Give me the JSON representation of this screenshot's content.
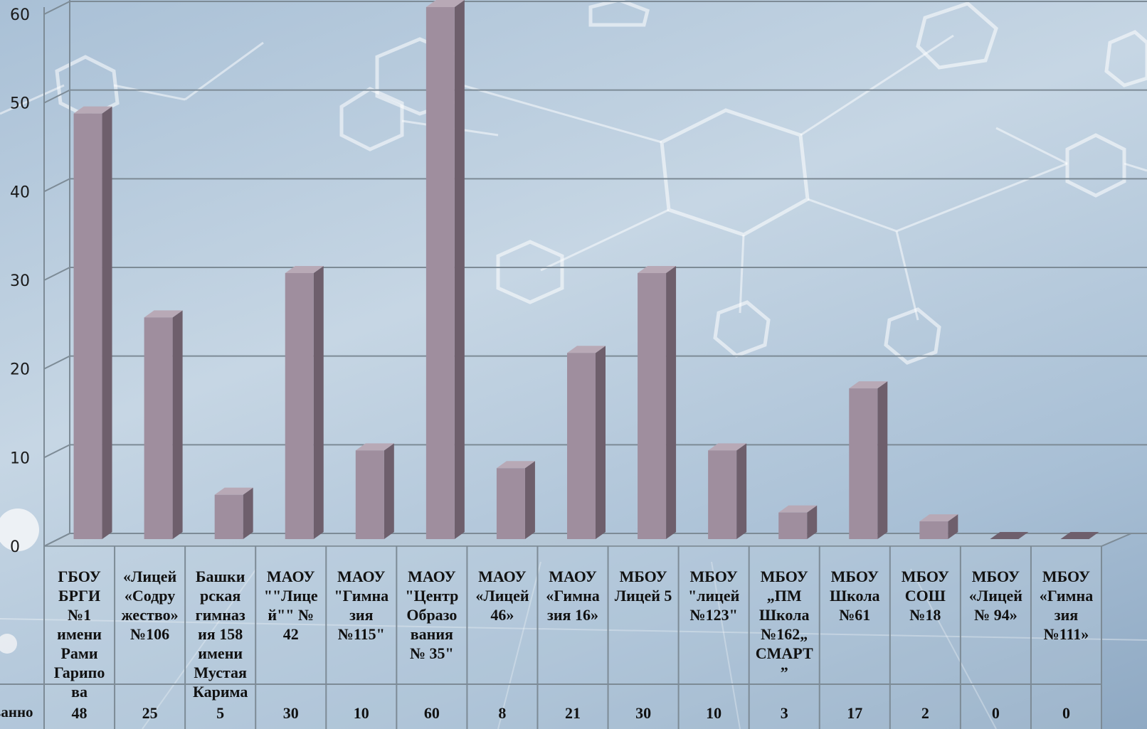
{
  "chart_data": {
    "type": "bar",
    "title": "",
    "xlabel": "",
    "ylabel": "",
    "ylim": [
      0,
      60
    ],
    "yticks": [
      0,
      10,
      20,
      30,
      40,
      50,
      60
    ],
    "grid": true,
    "legend": "none",
    "bar_color": "#9f8e9e",
    "bar_side_color": "#6e5f6c",
    "bar_top_color": "#b8a9b6",
    "categories": [
      "ГБОУ БРГИ №1 имени Рами Гарипова",
      "«Лицей «Содружество» №106",
      "Башкирская гимназия 158 имени Мустая Карима",
      "МАОУ \"\"Лицей\"\" № 42",
      "МАОУ \"Гимназия №115\"",
      "МАОУ \"Центр Образования № 35\"",
      "МАОУ «Лицей 46»",
      "МАОУ «Гимназия 16»",
      "МБОУ Лицей 5",
      "МБОУ \"лицей №123\"",
      "МБОУ „ПМ Школа №162„ СМАРТ”",
      "МБОУ Школа №61",
      "МБОУ СОШ №18",
      "МБОУ «Лицей № 94»",
      "МБОУ «Гимназия №111»"
    ],
    "category_lines": [
      [
        "ГБОУ",
        "БРГИ",
        "№1",
        "имени",
        "Рами",
        "Гарипо",
        "ва"
      ],
      [
        "«Лицей",
        "«Содру",
        "жество»",
        "№106"
      ],
      [
        "Башки",
        "рская",
        "гимназ",
        "ия 158",
        "имени",
        "Мустая",
        "Карима"
      ],
      [
        "МАОУ",
        "\"\"Лице",
        "й\"\"  №",
        "42"
      ],
      [
        "МАОУ",
        "\"Гимна",
        "зия",
        "№115\""
      ],
      [
        "МАОУ",
        "\"Центр",
        "Образо",
        "вания",
        "№ 35\""
      ],
      [
        "МАОУ",
        "«Лицей",
        "46»"
      ],
      [
        "МАОУ",
        "«Гимна",
        "зия 16»"
      ],
      [
        "МБОУ",
        "Лицей 5"
      ],
      [
        "МБОУ",
        "\"лицей",
        "№123\""
      ],
      [
        "МБОУ",
        "„ПМ",
        "Школа",
        "№162„",
        "СМАРТ",
        "”"
      ],
      [
        "МБОУ",
        "Школа",
        "№61"
      ],
      [
        "МБОУ",
        "СОШ",
        "№18"
      ],
      [
        "МБОУ",
        "«Лицей",
        "№ 94»"
      ],
      [
        "МБОУ",
        "«Гимна",
        "зия",
        "№111»"
      ]
    ],
    "series": [
      {
        "name": "ванно",
        "values": [
          48,
          25,
          5,
          30,
          10,
          60,
          8,
          21,
          30,
          10,
          3,
          17,
          2,
          0,
          0
        ]
      }
    ]
  }
}
